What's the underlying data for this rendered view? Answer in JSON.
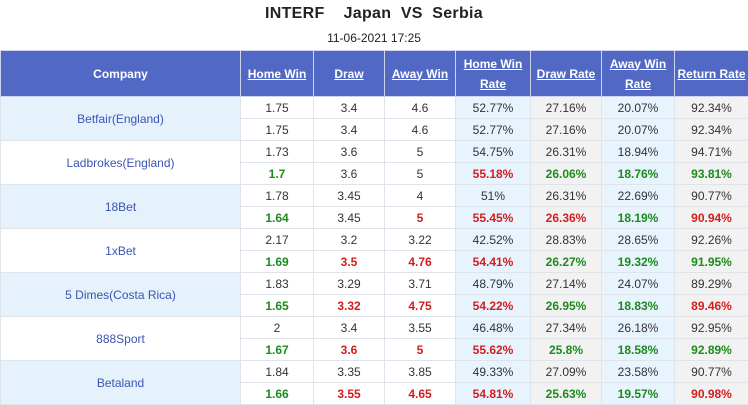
{
  "header": {
    "league": "INTERF",
    "home": "Japan",
    "vs": "VS",
    "away": "Serbia",
    "datetime": "11-06-2021 17:25"
  },
  "columns": [
    "Company",
    "Home Win",
    "Draw",
    "Away Win",
    "Home Win Rate",
    "Draw Rate",
    "Away Win Rate",
    "Return Rate"
  ],
  "colors": {
    "header_bg": "#5169c4",
    "company_text": "#3a55b4",
    "up": "#1d8a1d",
    "down": "#d21e1e"
  },
  "companies": [
    {
      "name": "Betfair(England)",
      "open": [
        "1.75",
        "3.4",
        "4.6",
        "52.77%",
        "27.16%",
        "20.07%",
        "92.34%"
      ],
      "live": [
        "1.75",
        "3.4",
        "4.6",
        "52.77%",
        "27.16%",
        "20.07%",
        "92.34%"
      ],
      "live_color": [
        "n",
        "n",
        "n",
        "n",
        "n",
        "n",
        "n"
      ]
    },
    {
      "name": "Ladbrokes(England)",
      "open": [
        "1.73",
        "3.6",
        "5",
        "54.75%",
        "26.31%",
        "18.94%",
        "94.71%"
      ],
      "live": [
        "1.7",
        "3.6",
        "5",
        "55.18%",
        "26.06%",
        "18.76%",
        "93.81%"
      ],
      "live_color": [
        "g",
        "n",
        "n",
        "r",
        "g",
        "g",
        "g"
      ]
    },
    {
      "name": "18Bet",
      "open": [
        "1.78",
        "3.45",
        "4",
        "51%",
        "26.31%",
        "22.69%",
        "90.77%"
      ],
      "live": [
        "1.64",
        "3.45",
        "5",
        "55.45%",
        "26.36%",
        "18.19%",
        "90.94%"
      ],
      "live_color": [
        "g",
        "n",
        "r",
        "r",
        "r",
        "g",
        "r"
      ]
    },
    {
      "name": "1xBet",
      "open": [
        "2.17",
        "3.2",
        "3.22",
        "42.52%",
        "28.83%",
        "28.65%",
        "92.26%"
      ],
      "live": [
        "1.69",
        "3.5",
        "4.76",
        "54.41%",
        "26.27%",
        "19.32%",
        "91.95%"
      ],
      "live_color": [
        "g",
        "r",
        "r",
        "r",
        "g",
        "g",
        "g"
      ]
    },
    {
      "name": "5 Dimes(Costa Rica)",
      "open": [
        "1.83",
        "3.29",
        "3.71",
        "48.79%",
        "27.14%",
        "24.07%",
        "89.29%"
      ],
      "live": [
        "1.65",
        "3.32",
        "4.75",
        "54.22%",
        "26.95%",
        "18.83%",
        "89.46%"
      ],
      "live_color": [
        "g",
        "r",
        "r",
        "r",
        "g",
        "g",
        "r"
      ]
    },
    {
      "name": "888Sport",
      "open": [
        "2",
        "3.4",
        "3.55",
        "46.48%",
        "27.34%",
        "26.18%",
        "92.95%"
      ],
      "live": [
        "1.67",
        "3.6",
        "5",
        "55.62%",
        "25.8%",
        "18.58%",
        "92.89%"
      ],
      "live_color": [
        "g",
        "r",
        "r",
        "r",
        "g",
        "g",
        "g"
      ]
    },
    {
      "name": "Betaland",
      "open": [
        "1.84",
        "3.35",
        "3.85",
        "49.33%",
        "27.09%",
        "23.58%",
        "90.77%"
      ],
      "live": [
        "1.66",
        "3.55",
        "4.65",
        "54.81%",
        "25.63%",
        "19.57%",
        "90.98%"
      ],
      "live_color": [
        "g",
        "r",
        "r",
        "r",
        "g",
        "g",
        "r"
      ]
    }
  ]
}
